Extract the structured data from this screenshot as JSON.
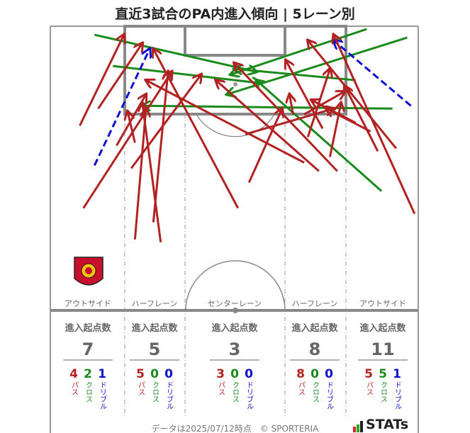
{
  "title": "直近3試合のPA内進入傾向 | 5レーン別",
  "colors": {
    "pass": "#b22222",
    "cross": "#1a8a1a",
    "dribble": "#1010d0",
    "lines": "#888888"
  },
  "lanes": [
    {
      "label": "アウトサイド",
      "heading": "進入起点数",
      "total": "7",
      "pass": "4",
      "cross": "2",
      "dribble": "1"
    },
    {
      "label": "ハーフレーン",
      "heading": "進入起点数",
      "total": "5",
      "pass": "5",
      "cross": "0",
      "dribble": "0"
    },
    {
      "label": "センターレーン",
      "heading": "進入起点数",
      "total": "3",
      "pass": "3",
      "cross": "0",
      "dribble": "0"
    },
    {
      "label": "ハーフレーン",
      "heading": "進入起点数",
      "total": "8",
      "pass": "8",
      "cross": "0",
      "dribble": "0"
    },
    {
      "label": "アウトサイド",
      "heading": "進入起点数",
      "total": "11",
      "pass": "5",
      "cross": "5",
      "dribble": "1"
    }
  ],
  "type_labels": {
    "pass": "パス",
    "cross": "クロス",
    "dribble": "ドリブル"
  },
  "footer": "データは2025/07/12時点　© SPORTERIA",
  "brand": "STATs",
  "chart_data": {
    "type": "arrow-map",
    "title": "直近3試合のPA内進入傾向 | 5レーン別",
    "note": "arrows in pitch coordinates (0-100 width from left, 0-100 depth from goal line)",
    "arrows": [
      {
        "kind": "cross",
        "from": [
          12,
          3
        ],
        "to": [
          56,
          16
        ]
      },
      {
        "kind": "cross",
        "from": [
          17,
          14
        ],
        "to": [
          57,
          20
        ]
      },
      {
        "kind": "cross",
        "from": [
          86,
          1
        ],
        "to": [
          49,
          17
        ]
      },
      {
        "kind": "cross",
        "from": [
          97,
          4
        ],
        "to": [
          48,
          24
        ]
      },
      {
        "kind": "cross",
        "from": [
          83,
          19
        ],
        "to": [
          50,
          15
        ]
      },
      {
        "kind": "cross",
        "from": [
          93,
          29
        ],
        "to": [
          25,
          28
        ]
      },
      {
        "kind": "cross",
        "from": [
          90,
          58
        ],
        "to": [
          56,
          19
        ]
      },
      {
        "kind": "dribble",
        "from": [
          12,
          49
        ],
        "to": [
          27,
          8
        ]
      },
      {
        "kind": "dribble",
        "from": [
          98,
          28
        ],
        "to": [
          77,
          5
        ]
      },
      {
        "kind": "pass",
        "from": [
          8,
          35
        ],
        "to": [
          20,
          3
        ]
      },
      {
        "kind": "pass",
        "from": [
          9,
          64
        ],
        "to": [
          33,
          16
        ]
      },
      {
        "kind": "pass",
        "from": [
          13,
          29
        ],
        "to": [
          25,
          6
        ]
      },
      {
        "kind": "pass",
        "from": [
          18,
          42
        ],
        "to": [
          26,
          24
        ]
      },
      {
        "kind": "pass",
        "from": [
          23,
          75
        ],
        "to": [
          26,
          29
        ]
      },
      {
        "kind": "pass",
        "from": [
          30,
          76
        ],
        "to": [
          25,
          27
        ]
      },
      {
        "kind": "pass",
        "from": [
          28,
          69
        ],
        "to": [
          32,
          16
        ]
      },
      {
        "kind": "pass",
        "from": [
          23,
          41
        ],
        "to": [
          21,
          30
        ]
      },
      {
        "kind": "pass",
        "from": [
          22,
          50
        ],
        "to": [
          41,
          17
        ]
      },
      {
        "kind": "pass",
        "from": [
          51,
          64
        ],
        "to": [
          28,
          8
        ]
      },
      {
        "kind": "pass",
        "from": [
          54,
          55
        ],
        "to": [
          63,
          29
        ]
      },
      {
        "kind": "pass",
        "from": [
          69,
          48
        ],
        "to": [
          26,
          19
        ]
      },
      {
        "kind": "pass",
        "from": [
          73,
          51
        ],
        "to": [
          45,
          19
        ]
      },
      {
        "kind": "pass",
        "from": [
          78,
          51
        ],
        "to": [
          50,
          13
        ]
      },
      {
        "kind": "pass",
        "from": [
          74,
          36
        ],
        "to": [
          64,
          12
        ]
      },
      {
        "kind": "pass",
        "from": [
          70,
          39
        ],
        "to": [
          76,
          15
        ]
      },
      {
        "kind": "pass",
        "from": [
          76,
          46
        ],
        "to": [
          79,
          27
        ]
      },
      {
        "kind": "pass",
        "from": [
          53,
          38
        ],
        "to": [
          77,
          29
        ]
      },
      {
        "kind": "pass",
        "from": [
          66,
          31
        ],
        "to": [
          65,
          24
        ]
      },
      {
        "kind": "pass",
        "from": [
          69,
          31
        ],
        "to": [
          80,
          23
        ]
      },
      {
        "kind": "pass",
        "from": [
          99,
          66
        ],
        "to": [
          77,
          3
        ]
      },
      {
        "kind": "pass",
        "from": [
          94,
          43
        ],
        "to": [
          70,
          5
        ]
      },
      {
        "kind": "pass",
        "from": [
          89,
          44
        ],
        "to": [
          80,
          21
        ]
      },
      {
        "kind": "pass",
        "from": [
          83,
          34
        ],
        "to": [
          71,
          26
        ]
      },
      {
        "kind": "pass",
        "from": [
          87,
          37
        ],
        "to": [
          75,
          29
        ]
      }
    ]
  }
}
